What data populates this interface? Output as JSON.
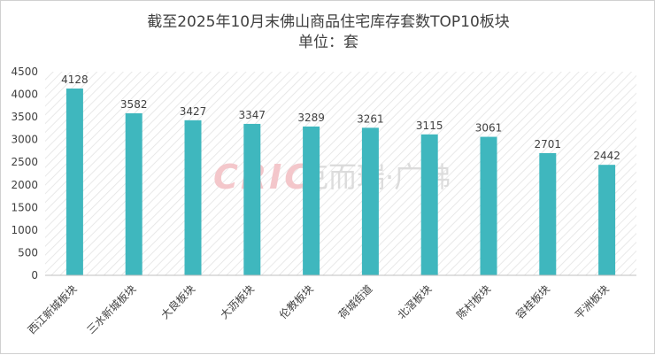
{
  "chart_data": {
    "type": "bar",
    "title": "截至2025年10月末佛山商品住宅库存套数TOP10板块",
    "subtitle": "单位：套",
    "categories": [
      "西江新城板块",
      "三水新城板块",
      "大良板块",
      "大沥板块",
      "伦教板块",
      "荷城街道",
      "北滘板块",
      "陈村板块",
      "容桂板块",
      "平洲板块"
    ],
    "values": [
      4128,
      3582,
      3427,
      3347,
      3289,
      3261,
      3115,
      3061,
      2701,
      2442
    ],
    "y_ticks": [
      "0",
      "500",
      "1000",
      "1500",
      "2000",
      "2500",
      "3000",
      "3500",
      "4000",
      "4500"
    ],
    "ylim": [
      0,
      4500
    ],
    "xlabel": "",
    "ylabel": "",
    "grid": false,
    "plot_background": "diagonal-hatch",
    "bar_color": "#3fb7be",
    "legend": "none",
    "watermark": "CRIC克而瑞·广佛"
  },
  "colors": {
    "bar": "#3fb7be",
    "text": "#404040",
    "axis": "#bfbfbf",
    "hatch": "#e3e3e3",
    "watermark_red": "#f3c2c6",
    "watermark_gray": "#d9d9d9"
  }
}
